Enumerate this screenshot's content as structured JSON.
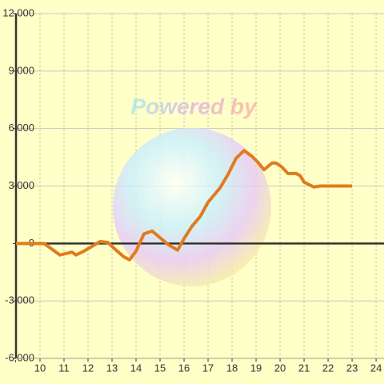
{
  "chart_data": {
    "type": "line",
    "watermark": "Powered by",
    "x": [
      9,
      10,
      10.17,
      10.5,
      10.83,
      11.17,
      11.33,
      11.5,
      11.83,
      12.17,
      12.5,
      12.83,
      13.17,
      13.5,
      13.73,
      14,
      14.33,
      14.67,
      15,
      15.33,
      15.73,
      16,
      16.33,
      16.67,
      17,
      17.5,
      17.83,
      18.17,
      18.5,
      18.83,
      19.07,
      19.33,
      19.67,
      19.83,
      20.07,
      20.33,
      20.67,
      20.83,
      21,
      21.4,
      21.67,
      23
    ],
    "series": [
      {
        "color": "#e07b20",
        "values": [
          0,
          0,
          0,
          -300,
          -600,
          -500,
          -450,
          -600,
          -400,
          -150,
          100,
          50,
          -350,
          -700,
          -850,
          -400,
          500,
          650,
          300,
          -50,
          -350,
          250,
          900,
          1400,
          2150,
          2900,
          3600,
          4450,
          4850,
          4550,
          4250,
          3850,
          4200,
          4200,
          4000,
          3650,
          3650,
          3550,
          3200,
          2950,
          3000,
          3000
        ]
      }
    ],
    "xlim": [
      9,
      24.33
    ],
    "xticks": [
      10,
      11,
      12,
      13,
      14,
      15,
      16,
      17,
      18,
      19,
      20,
      21,
      22,
      23,
      24
    ],
    "ylim": [
      -6000,
      12000
    ],
    "yticks": [
      {
        "value": -6000,
        "label": "-6,000"
      },
      {
        "value": -3000,
        "label": "-3,000"
      },
      0,
      {
        "value": 3000,
        "label": "3,000"
      },
      {
        "value": 6000,
        "label": "6,000"
      },
      {
        "value": 9000,
        "label": "9,000"
      },
      {
        "value": 12000,
        "label": "12,000"
      }
    ],
    "grid": true
  }
}
